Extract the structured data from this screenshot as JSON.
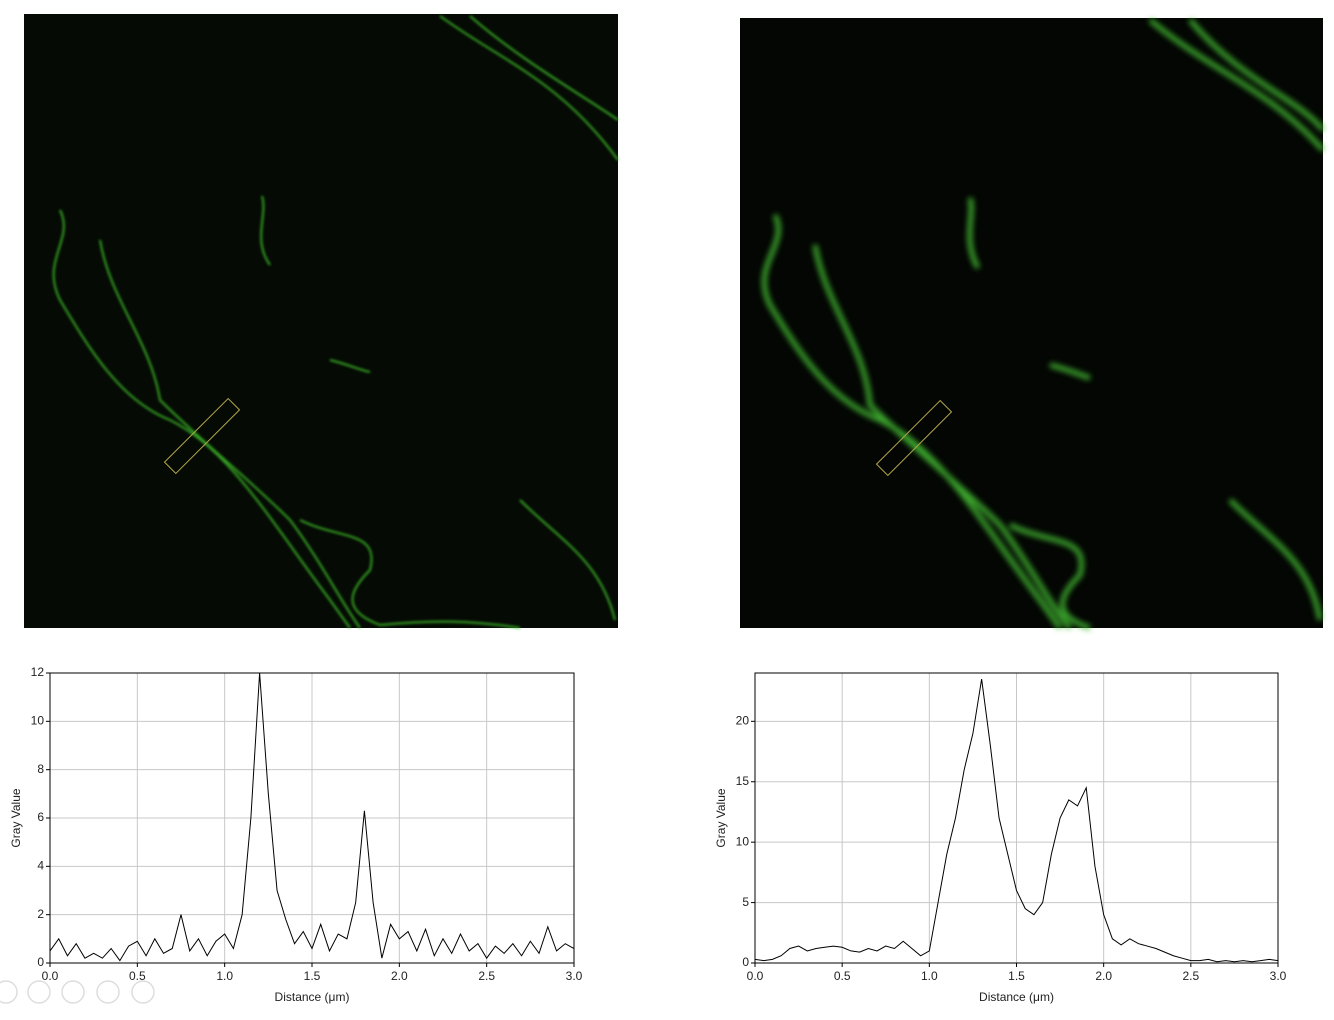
{
  "chart_data": [
    {
      "type": "line",
      "xlabel": "Distance (μm)",
      "ylabel": "Gray Value",
      "x": [
        0,
        0.05,
        0.1,
        0.15,
        0.2,
        0.25,
        0.3,
        0.35,
        0.4,
        0.45,
        0.5,
        0.55,
        0.6,
        0.65,
        0.7,
        0.75,
        0.8,
        0.85,
        0.9,
        0.95,
        1,
        1.05,
        1.1,
        1.15,
        1.2,
        1.25,
        1.3,
        1.35,
        1.4,
        1.45,
        1.5,
        1.55,
        1.6,
        1.65,
        1.7,
        1.75,
        1.8,
        1.85,
        1.9,
        1.95,
        2,
        2.05,
        2.1,
        2.15,
        2.2,
        2.25,
        2.3,
        2.35,
        2.4,
        2.45,
        2.5,
        2.55,
        2.6,
        2.65,
        2.7,
        2.75,
        2.8,
        2.85,
        2.9,
        2.95,
        3
      ],
      "series": [
        {
          "color": "#000000",
          "values": [
            0.5,
            1,
            0.3,
            0.8,
            0.2,
            0.4,
            0.2,
            0.6,
            0.1,
            0.7,
            0.9,
            0.3,
            1,
            0.4,
            0.6,
            2,
            0.5,
            1,
            0.3,
            0.9,
            1.2,
            0.6,
            2,
            6,
            12,
            7,
            3,
            1.8,
            0.8,
            1.3,
            0.6,
            1.6,
            0.5,
            1.2,
            1,
            2.5,
            6.3,
            2.5,
            0.2,
            1.6,
            1,
            1.3,
            0.5,
            1.4,
            0.3,
            1,
            0.4,
            1.2,
            0.5,
            0.8,
            0.2,
            0.7,
            0.4,
            0.8,
            0.3,
            0.9,
            0.4,
            1.5,
            0.5,
            0.8,
            0.6
          ]
        }
      ],
      "xlim": [
        0,
        3
      ],
      "xticks": [
        {
          "value": 0,
          "label": "0.0"
        },
        0.5,
        {
          "value": 1,
          "label": "1.0"
        },
        1.5,
        {
          "value": 2,
          "label": "2.0"
        },
        2.5,
        {
          "value": 3,
          "label": "3.0"
        }
      ],
      "ylim": [
        0,
        12
      ],
      "yticks": [
        0,
        2,
        4,
        6,
        8,
        10,
        12
      ],
      "grid": true
    },
    {
      "type": "line",
      "xlabel": "Distance (μm)",
      "ylabel": "Gray Value",
      "x": [
        0,
        0.05,
        0.1,
        0.15,
        0.2,
        0.25,
        0.3,
        0.35,
        0.4,
        0.45,
        0.5,
        0.55,
        0.6,
        0.65,
        0.7,
        0.75,
        0.8,
        0.85,
        0.9,
        0.95,
        1,
        1.05,
        1.1,
        1.15,
        1.2,
        1.25,
        1.3,
        1.35,
        1.4,
        1.45,
        1.5,
        1.55,
        1.6,
        1.65,
        1.7,
        1.75,
        1.8,
        1.85,
        1.9,
        1.95,
        2,
        2.05,
        2.1,
        2.15,
        2.2,
        2.25,
        2.3,
        2.35,
        2.4,
        2.45,
        2.5,
        2.55,
        2.6,
        2.65,
        2.7,
        2.75,
        2.8,
        2.85,
        2.9,
        2.95,
        3
      ],
      "series": [
        {
          "color": "#000000",
          "values": [
            0.3,
            0.2,
            0.3,
            0.6,
            1.2,
            1.4,
            1,
            1.2,
            1.3,
            1.4,
            1.3,
            1,
            0.9,
            1.2,
            1,
            1.4,
            1.2,
            1.8,
            1.2,
            0.6,
            1,
            5,
            9,
            12,
            16,
            19,
            23.5,
            18,
            12,
            9,
            6,
            4.5,
            4,
            5,
            9,
            12,
            13.5,
            13,
            14.5,
            8,
            4,
            2,
            1.5,
            2,
            1.6,
            1.4,
            1.2,
            0.9,
            0.6,
            0.4,
            0.2,
            0.2,
            0.3,
            0.1,
            0.2,
            0.1,
            0.2,
            0.1,
            0.2,
            0.3,
            0.2
          ]
        }
      ],
      "xlim": [
        0,
        3
      ],
      "xticks": [
        {
          "value": 0,
          "label": "0.0"
        },
        0.5,
        {
          "value": 1,
          "label": "1.0"
        },
        1.5,
        {
          "value": 2,
          "label": "2.0"
        },
        2.5,
        {
          "value": 3,
          "label": "3.0"
        }
      ],
      "ylim": [
        0,
        24
      ],
      "yticks": [
        0,
        5,
        10,
        15,
        20
      ],
      "grid": true
    }
  ]
}
